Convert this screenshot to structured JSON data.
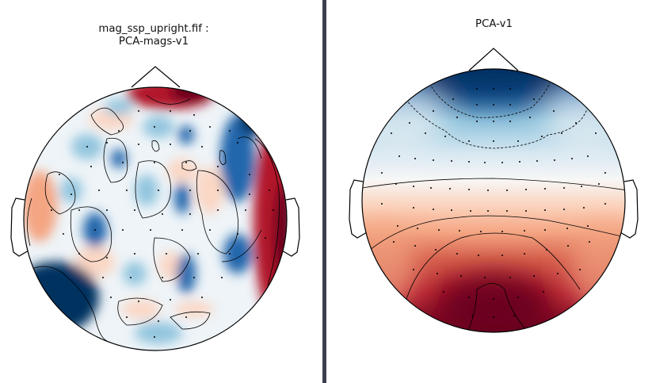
{
  "panels": [
    {
      "title": "mag_ssp_upright.fif :\nPCA-mags-v1"
    },
    {
      "title": "PCA-v1"
    }
  ],
  "colors": {
    "deep_red": "#67001f",
    "red": "#b2182b",
    "light_red": "#f4a582",
    "white": "#f7f7f7",
    "light_blue": "#92c5de",
    "blue": "#2166ac",
    "deep_blue": "#053061",
    "divider": "#3d3e4f"
  }
}
